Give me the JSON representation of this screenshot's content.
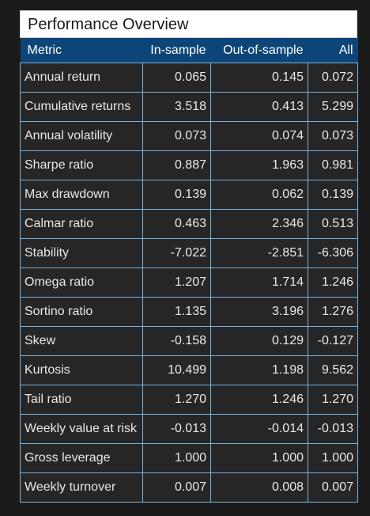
{
  "panel": {
    "title": "Performance Overview"
  },
  "table": {
    "headers": [
      "Metric",
      "In-sample",
      "Out-of-sample",
      "All"
    ],
    "rows": [
      [
        "Annual return",
        "0.065",
        "0.145",
        "0.072"
      ],
      [
        "Cumulative returns",
        "3.518",
        "0.413",
        "5.299"
      ],
      [
        "Annual volatility",
        "0.073",
        "0.074",
        "0.073"
      ],
      [
        "Sharpe ratio",
        "0.887",
        "1.963",
        "0.981"
      ],
      [
        "Max drawdown",
        "0.139",
        "0.062",
        "0.139"
      ],
      [
        "Calmar ratio",
        "0.463",
        "2.346",
        "0.513"
      ],
      [
        "Stability",
        "-7.022",
        "-2.851",
        "-6.306"
      ],
      [
        "Omega ratio",
        "1.207",
        "1.714",
        "1.246"
      ],
      [
        "Sortino ratio",
        "1.135",
        "3.196",
        "1.276"
      ],
      [
        "Skew",
        "-0.158",
        "0.129",
        "-0.127"
      ],
      [
        "Kurtosis",
        "10.499",
        "1.198",
        "9.562"
      ],
      [
        "Tail ratio",
        "1.270",
        "1.246",
        "1.270"
      ],
      [
        "Weekly value at risk",
        "-0.013",
        "-0.014",
        "-0.013"
      ],
      [
        "Gross leverage",
        "1.000",
        "1.000",
        "1.000"
      ],
      [
        "Weekly turnover",
        "0.007",
        "0.008",
        "0.007"
      ]
    ]
  },
  "colors": {
    "header_bg": "#0e4578",
    "cell_bg": "#262626",
    "border": "#7ab4df",
    "page_bg": "#1b1b1b"
  }
}
